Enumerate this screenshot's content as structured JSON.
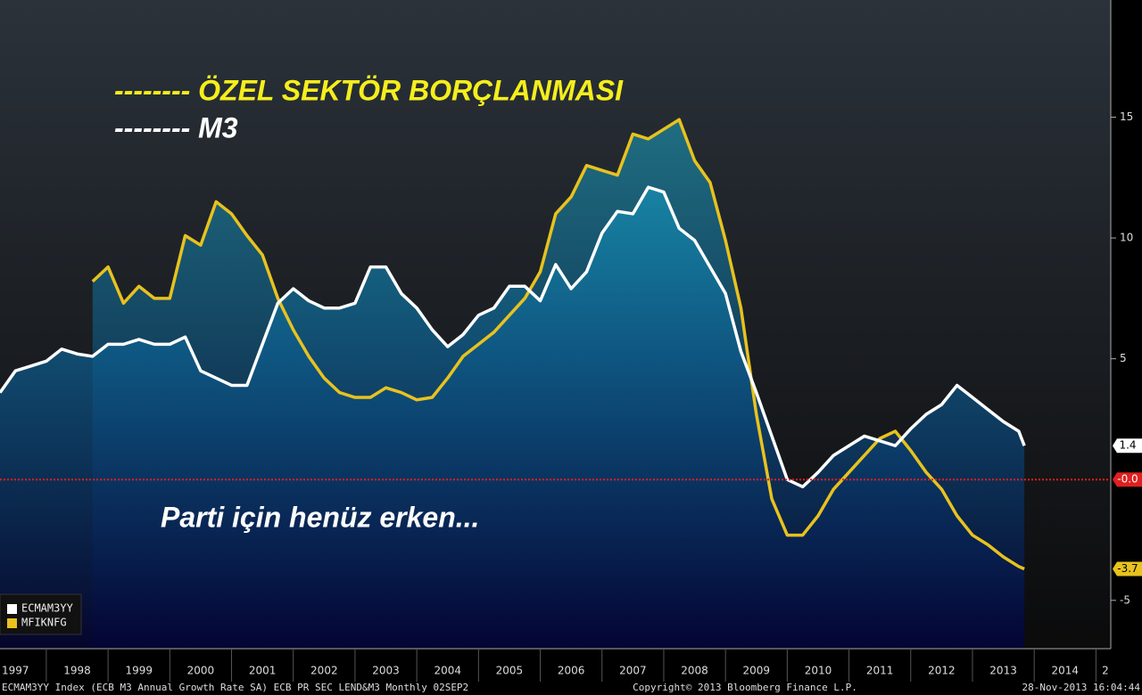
{
  "chart_data": {
    "type": "area-line",
    "annotations": [
      {
        "text": "-------- ÖZEL SEKTÖR BORÇLANMASI",
        "color": "#f5ee1c"
      },
      {
        "text": "-------- M3",
        "color": "#ffffff"
      },
      {
        "text": "Parti için henüz erken...",
        "color": "#ffffff"
      }
    ],
    "x": [
      1997.25,
      1997.5,
      1997.75,
      1998,
      1998.25,
      1998.5,
      1998.75,
      1999,
      1999.25,
      1999.5,
      1999.75,
      2000,
      2000.25,
      2000.5,
      2000.75,
      2001,
      2001.25,
      2001.5,
      2001.75,
      2002,
      2002.25,
      2002.5,
      2002.75,
      2003,
      2003.25,
      2003.5,
      2003.75,
      2004,
      2004.25,
      2004.5,
      2004.75,
      2005,
      2005.25,
      2005.5,
      2005.75,
      2006,
      2006.25,
      2006.5,
      2006.75,
      2007,
      2007.25,
      2007.5,
      2007.75,
      2008,
      2008.25,
      2008.5,
      2008.75,
      2009,
      2009.25,
      2009.5,
      2009.75,
      2010,
      2010.25,
      2010.5,
      2010.75,
      2011,
      2011.25,
      2011.5,
      2011.75,
      2012,
      2012.25,
      2012.5,
      2012.75,
      2013,
      2013.25,
      2013.5,
      2013.75,
      2013.84
    ],
    "series": [
      {
        "name": "ECMAM3YY",
        "color": "#ffffff",
        "label_text_color": "#000000",
        "values": [
          3.6,
          4.5,
          4.7,
          4.9,
          5.4,
          5.2,
          5.1,
          5.6,
          5.6,
          5.8,
          5.6,
          5.6,
          5.9,
          4.5,
          4.2,
          3.9,
          3.9,
          5.6,
          7.3,
          7.9,
          7.4,
          7.1,
          7.1,
          7.3,
          8.8,
          8.8,
          7.7,
          7.1,
          6.2,
          5.5,
          6.0,
          6.8,
          7.1,
          8.0,
          8.0,
          7.4,
          8.9,
          7.9,
          8.6,
          10.2,
          11.1,
          11.0,
          12.1,
          11.9,
          10.4,
          9.9,
          8.8,
          7.7,
          5.3,
          3.6,
          1.8,
          0.0,
          -0.3,
          0.3,
          1.0,
          1.4,
          1.8,
          1.6,
          1.4,
          2.1,
          2.7,
          3.1,
          3.9,
          3.4,
          2.9,
          2.4,
          2.0,
          1.4
        ]
      },
      {
        "name": "MFIKNFG",
        "color": "#e8c21e",
        "label_text_color": "#000000",
        "values": [
          null,
          null,
          null,
          null,
          null,
          null,
          8.2,
          8.8,
          7.3,
          8.0,
          7.5,
          7.5,
          10.1,
          9.7,
          11.5,
          11.0,
          10.1,
          9.3,
          7.5,
          6.2,
          5.1,
          4.2,
          3.6,
          3.4,
          3.4,
          3.8,
          3.6,
          3.3,
          3.4,
          4.2,
          5.1,
          5.6,
          6.1,
          6.8,
          7.5,
          8.6,
          11.0,
          11.7,
          13.0,
          12.8,
          12.6,
          14.3,
          14.1,
          14.5,
          14.9,
          13.2,
          12.3,
          9.9,
          7.1,
          2.7,
          -0.8,
          -2.3,
          -2.3,
          -1.5,
          -0.4,
          0.3,
          1.0,
          1.7,
          2.0,
          1.2,
          0.3,
          -0.4,
          -1.5,
          -2.3,
          -2.7,
          -3.2,
          -3.6,
          -3.7
        ]
      }
    ],
    "reference_line": {
      "value": 0,
      "label": "-0.0",
      "color": "#e02020"
    },
    "xlim": [
      1997.25,
      2015.24
    ],
    "xticks": [
      1997,
      1998,
      1999,
      2000,
      2001,
      2002,
      2003,
      2004,
      2005,
      2006,
      2007,
      2008,
      2009,
      2010,
      2011,
      2012,
      2013,
      2014,
      {
        "value": 2015,
        "label": "2"
      }
    ],
    "ylim": [
      -7,
      19.85
    ],
    "yticks": [
      -5,
      5,
      10,
      15
    ],
    "grid": false,
    "legend": "bottom-left"
  },
  "footer": {
    "left": "ECMAM3YY Index (ECB M3 Annual Growth Rate SA) ECB PR SEC LEND&M3  Monthly 02SEP2",
    "center": "Copyright© 2013 Bloomberg Finance L.P.",
    "right": "28-Nov-2013 16:04:44"
  }
}
